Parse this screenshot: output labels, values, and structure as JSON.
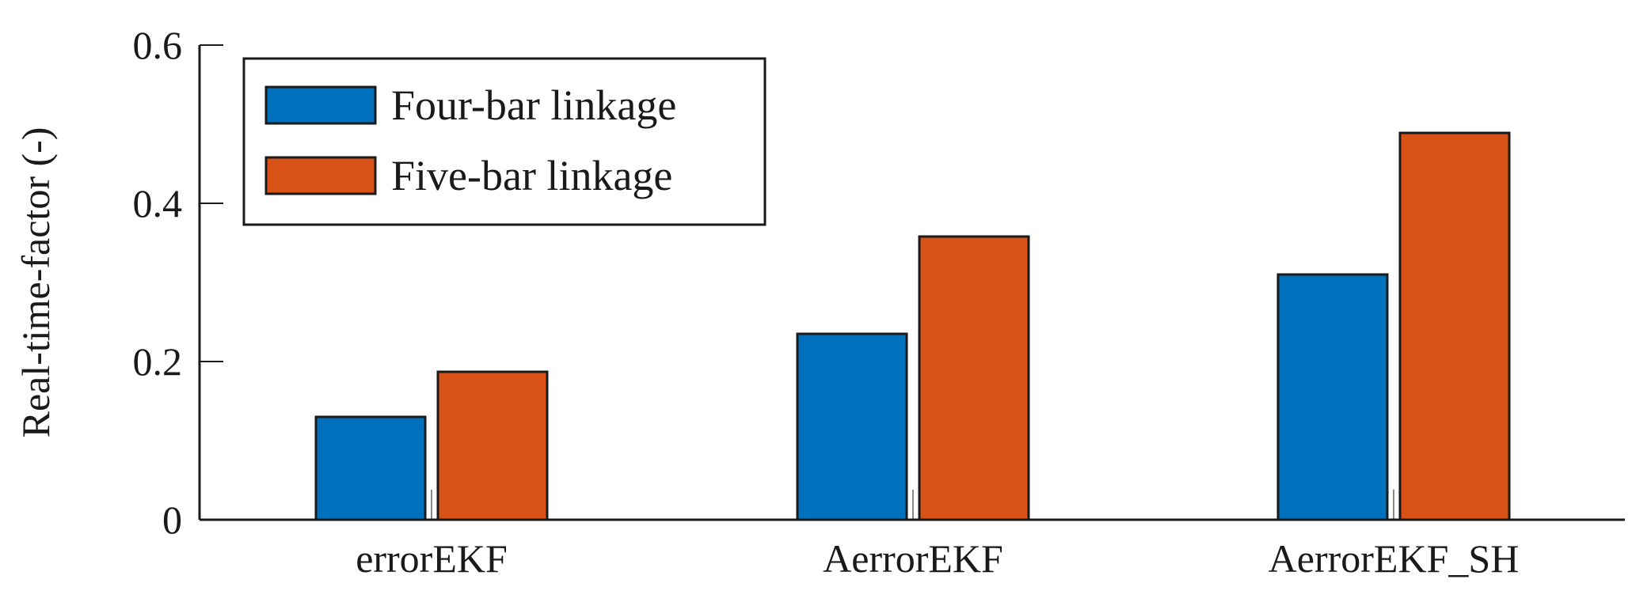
{
  "chart_data": {
    "type": "bar",
    "categories": [
      "errorEKF",
      "AerrorEKF",
      "AerrorEKF_SH"
    ],
    "series": [
      {
        "name": "Four-bar linkage",
        "color": "#0072bd",
        "values": [
          0.13,
          0.235,
          0.31
        ]
      },
      {
        "name": "Five-bar linkage",
        "color": "#d95319",
        "values": [
          0.187,
          0.358,
          0.489
        ]
      }
    ],
    "xlabel": "",
    "ylabel": "Real-time-factor (-)",
    "ylim": [
      0,
      0.6
    ],
    "yticks": [
      0,
      0.2,
      0.4,
      0.6
    ],
    "ytick_labels": [
      "0",
      "0.2",
      "0.4",
      "0.6"
    ],
    "grid": false,
    "legend_position": "top-left"
  }
}
